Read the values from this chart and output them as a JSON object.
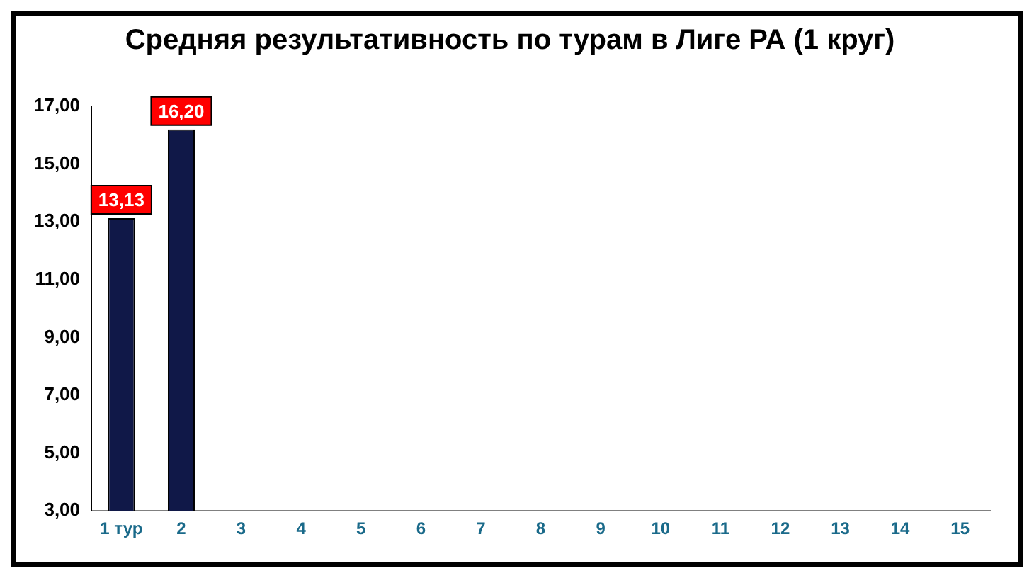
{
  "chart_data": {
    "type": "bar",
    "title": "Средняя результативность по турам в Лиге РА (1 круг)",
    "categories": [
      "1 тур",
      "2",
      "3",
      "4",
      "5",
      "6",
      "7",
      "8",
      "9",
      "10",
      "11",
      "12",
      "13",
      "14",
      "15"
    ],
    "values": [
      13.13,
      16.2,
      null,
      null,
      null,
      null,
      null,
      null,
      null,
      null,
      null,
      null,
      null,
      null,
      null
    ],
    "value_labels": [
      "13,13",
      "16,20",
      null,
      null,
      null,
      null,
      null,
      null,
      null,
      null,
      null,
      null,
      null,
      null,
      null
    ],
    "color": "#101848",
    "ylim": [
      3,
      17
    ],
    "yticks": [
      {
        "value": 3,
        "label": "3,00"
      },
      {
        "value": 5,
        "label": "5,00"
      },
      {
        "value": 7,
        "label": "7,00"
      },
      {
        "value": 9,
        "label": "9,00"
      },
      {
        "value": 11,
        "label": "11,00"
      },
      {
        "value": 13,
        "label": "13,00"
      },
      {
        "value": 15,
        "label": "15,00"
      },
      {
        "value": 17,
        "label": "17,00"
      }
    ],
    "grid": false,
    "legend": false
  }
}
